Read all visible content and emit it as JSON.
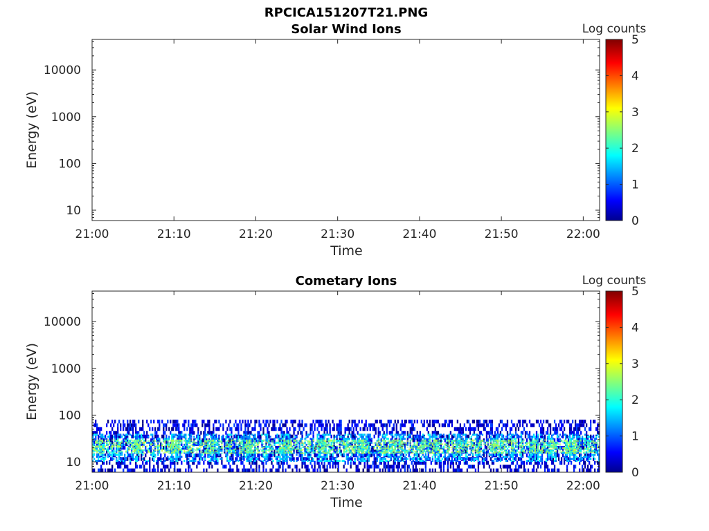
{
  "figure": {
    "title": "RPCICA151207T21.PNG"
  },
  "chart_data": [
    {
      "type": "heatmap",
      "title": "Solar Wind Ions",
      "xlabel": "Time",
      "ylabel": "Energy (eV)",
      "xlim": [
        "21:00",
        "22:02"
      ],
      "x_ticks": [
        "21:00",
        "21:10",
        "21:20",
        "21:30",
        "21:40",
        "21:50",
        "22:00"
      ],
      "y_scale": "log",
      "ylim": [
        6,
        45000
      ],
      "y_ticks": [
        10,
        100,
        1000,
        10000
      ],
      "y_tick_labels": [
        "10",
        "100",
        "1000",
        "10000"
      ],
      "colorbar": {
        "label": "Log counts",
        "range": [
          0,
          5
        ],
        "ticks": [
          "0",
          "1",
          "2",
          "3",
          "4",
          "5"
        ],
        "colormap": "jet"
      },
      "data_summary": "no counts recorded (empty panel)",
      "bands": []
    },
    {
      "type": "heatmap",
      "title": "Cometary Ions",
      "xlabel": "Time",
      "ylabel": "Energy (eV)",
      "xlim": [
        "21:00",
        "22:02"
      ],
      "x_ticks": [
        "21:00",
        "21:10",
        "21:20",
        "21:30",
        "21:40",
        "21:50",
        "22:00"
      ],
      "y_scale": "log",
      "ylim": [
        6,
        45000
      ],
      "y_ticks": [
        10,
        100,
        1000,
        10000
      ],
      "y_tick_labels": [
        "10",
        "100",
        "1000",
        "10000"
      ],
      "colorbar": {
        "label": "Log counts",
        "range": [
          0,
          5
        ],
        "ticks": [
          "0",
          "1",
          "2",
          "3",
          "4",
          "5"
        ],
        "colormap": "jet"
      },
      "data_summary": "continuous low-energy ion band across the whole interval",
      "bands": [
        {
          "energy_range_eV": [
            6,
            80
          ],
          "log_counts_range": [
            0,
            1
          ],
          "description": "sparse outer fringe"
        },
        {
          "energy_range_eV": [
            10,
            40
          ],
          "log_counts_range": [
            1,
            2
          ],
          "description": "main band"
        },
        {
          "energy_range_eV": [
            15,
            30
          ],
          "log_counts_range": [
            2,
            3
          ],
          "description": "core, peak near 20 eV"
        }
      ]
    }
  ]
}
